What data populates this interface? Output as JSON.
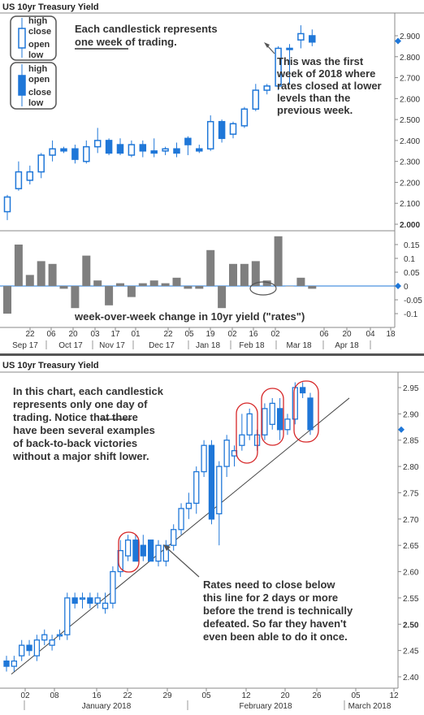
{
  "chart_data": [
    {
      "type": "candlestick",
      "title": "US 10yr Treasury Yield",
      "interval": "weekly",
      "ylim": [
        2.0,
        2.96
      ],
      "yticks": [
        "2.000",
        "2.100",
        "2.200",
        "2.300",
        "2.400",
        "2.500",
        "2.600",
        "2.700",
        "2.800",
        "2.900"
      ],
      "current_value": 2.875,
      "x_ticks": [
        "22",
        "06",
        "20",
        "03",
        "17",
        "01",
        "22",
        "05",
        "19",
        "02",
        "16",
        "02",
        "06",
        "20",
        "04",
        "18"
      ],
      "x_months": [
        "Sep 17",
        "Oct 17",
        "Nov 17",
        "Dec 17",
        "Jan 18",
        "Feb 18",
        "Mar 18",
        "Apr 18"
      ],
      "candles": [
        {
          "o": 2.06,
          "h": 2.14,
          "l": 2.02,
          "c": 2.13
        },
        {
          "o": 2.17,
          "h": 2.3,
          "l": 2.16,
          "c": 2.25
        },
        {
          "o": 2.21,
          "h": 2.28,
          "l": 2.19,
          "c": 2.25
        },
        {
          "o": 2.25,
          "h": 2.34,
          "l": 2.22,
          "c": 2.33
        },
        {
          "o": 2.33,
          "h": 2.4,
          "l": 2.3,
          "c": 2.36
        },
        {
          "o": 2.36,
          "h": 2.37,
          "l": 2.34,
          "c": 2.35
        },
        {
          "o": 2.36,
          "h": 2.38,
          "l": 2.29,
          "c": 2.31
        },
        {
          "o": 2.3,
          "h": 2.4,
          "l": 2.29,
          "c": 2.37
        },
        {
          "o": 2.37,
          "h": 2.46,
          "l": 2.34,
          "c": 2.4
        },
        {
          "o": 2.4,
          "h": 2.41,
          "l": 2.33,
          "c": 2.34
        },
        {
          "o": 2.38,
          "h": 2.41,
          "l": 2.33,
          "c": 2.34
        },
        {
          "o": 2.33,
          "h": 2.4,
          "l": 2.32,
          "c": 2.38
        },
        {
          "o": 2.38,
          "h": 2.4,
          "l": 2.32,
          "c": 2.35
        },
        {
          "o": 2.35,
          "h": 2.41,
          "l": 2.32,
          "c": 2.34
        },
        {
          "o": 2.35,
          "h": 2.37,
          "l": 2.33,
          "c": 2.36
        },
        {
          "o": 2.36,
          "h": 2.39,
          "l": 2.32,
          "c": 2.34
        },
        {
          "o": 2.41,
          "h": 2.42,
          "l": 2.33,
          "c": 2.38
        },
        {
          "o": 2.36,
          "h": 2.38,
          "l": 2.34,
          "c": 2.35
        },
        {
          "o": 2.36,
          "h": 2.52,
          "l": 2.35,
          "c": 2.49
        },
        {
          "o": 2.49,
          "h": 2.5,
          "l": 2.39,
          "c": 2.41
        },
        {
          "o": 2.43,
          "h": 2.49,
          "l": 2.41,
          "c": 2.48
        },
        {
          "o": 2.47,
          "h": 2.56,
          "l": 2.46,
          "c": 2.55
        },
        {
          "o": 2.55,
          "h": 2.67,
          "l": 2.54,
          "c": 2.64
        },
        {
          "o": 2.64,
          "h": 2.67,
          "l": 2.62,
          "c": 2.66
        },
        {
          "o": 2.66,
          "h": 2.85,
          "l": 2.64,
          "c": 2.84
        },
        {
          "o": 2.84,
          "h": 2.86,
          "l": 2.67,
          "c": 2.84
        },
        {
          "o": 2.88,
          "h": 2.95,
          "l": 2.84,
          "c": 2.91
        },
        {
          "o": 2.9,
          "h": 2.93,
          "l": 2.85,
          "c": 2.87
        }
      ],
      "annotations": {
        "legend_up_labels": [
          "high",
          "close",
          "open",
          "low"
        ],
        "legend_down_labels": [
          "high",
          "open",
          "close",
          "low"
        ],
        "note_top_line1": "Each candlestick represents",
        "note_top_line2": "one week of trading.",
        "note_side": [
          "This was the first",
          "week of 2018 where",
          "rates closed at lower",
          "levels than the",
          "previous week."
        ]
      }
    },
    {
      "type": "bar",
      "title": "",
      "series_name": "week-over-week change in 10yr yield (\"rates\")",
      "ylim": [
        -0.11,
        0.18
      ],
      "yticks": [
        "0.15",
        "0.1",
        "0.05",
        "0",
        "-0.05",
        "-0.1"
      ],
      "current_value": 0,
      "values": [
        -0.1,
        0.15,
        0.04,
        0.09,
        0.08,
        -0.01,
        -0.08,
        0.11,
        0.02,
        -0.07,
        0.01,
        -0.04,
        0.01,
        0.02,
        0.01,
        0.03,
        -0.01,
        -0.01,
        0.13,
        -0.08,
        0.08,
        0.08,
        0.09,
        0.02,
        0.18,
        0.0,
        0.03,
        -0.01
      ]
    },
    {
      "type": "candlestick",
      "title": "US 10yr Treasury Yield",
      "interval": "daily",
      "ylim": [
        2.39,
        2.965
      ],
      "yticks": [
        "2.40",
        "2.45",
        "2.50",
        "2.55",
        "2.60",
        "2.65",
        "2.70",
        "2.75",
        "2.80",
        "2.85",
        "2.90",
        "2.95"
      ],
      "current_value": 2.87,
      "x_ticks": [
        "02",
        "08",
        "16",
        "22",
        "29",
        "05",
        "12",
        "20",
        "26",
        "05",
        "12"
      ],
      "x_months": [
        "January 2018",
        "February 2018",
        "March 2018"
      ],
      "trendline": {
        "start": 2.405,
        "end": 2.93
      },
      "annotations": {
        "note_top": [
          "In this chart, each candlestick",
          "represents only one day of",
          "trading.  Notice that there",
          "have been several examples",
          "of back-to-back victories",
          "without a major shift lower."
        ],
        "note_bottom": [
          "Rates need to close below",
          "this line for 2 days or more",
          "before the trend is technically",
          "defeated.  So far they haven't",
          "even been able to do it once."
        ]
      },
      "candles": [
        {
          "o": 2.43,
          "h": 2.44,
          "l": 2.41,
          "c": 2.42
        },
        {
          "o": 2.42,
          "h": 2.44,
          "l": 2.41,
          "c": 2.43
        },
        {
          "o": 2.44,
          "h": 2.47,
          "l": 2.43,
          "c": 2.46
        },
        {
          "o": 2.46,
          "h": 2.47,
          "l": 2.44,
          "c": 2.45
        },
        {
          "o": 2.44,
          "h": 2.48,
          "l": 2.43,
          "c": 2.47
        },
        {
          "o": 2.47,
          "h": 2.49,
          "l": 2.46,
          "c": 2.48
        },
        {
          "o": 2.46,
          "h": 2.48,
          "l": 2.45,
          "c": 2.47
        },
        {
          "o": 2.48,
          "h": 2.49,
          "l": 2.47,
          "c": 2.48
        },
        {
          "o": 2.48,
          "h": 2.56,
          "l": 2.47,
          "c": 2.55
        },
        {
          "o": 2.55,
          "h": 2.56,
          "l": 2.53,
          "c": 2.54
        },
        {
          "o": 2.55,
          "h": 2.56,
          "l": 2.53,
          "c": 2.55
        },
        {
          "o": 2.55,
          "h": 2.56,
          "l": 2.53,
          "c": 2.54
        },
        {
          "o": 2.54,
          "h": 2.56,
          "l": 2.53,
          "c": 2.55
        },
        {
          "o": 2.53,
          "h": 2.56,
          "l": 2.52,
          "c": 2.54
        },
        {
          "o": 2.54,
          "h": 2.61,
          "l": 2.53,
          "c": 2.6
        },
        {
          "o": 2.6,
          "h": 2.66,
          "l": 2.59,
          "c": 2.64
        },
        {
          "o": 2.63,
          "h": 2.67,
          "l": 2.62,
          "c": 2.66
        },
        {
          "o": 2.66,
          "h": 2.67,
          "l": 2.62,
          "c": 2.62
        },
        {
          "o": 2.65,
          "h": 2.67,
          "l": 2.62,
          "c": 2.63
        },
        {
          "o": 2.66,
          "h": 2.66,
          "l": 2.62,
          "c": 2.62
        },
        {
          "o": 2.62,
          "h": 2.66,
          "l": 2.61,
          "c": 2.65
        },
        {
          "o": 2.62,
          "h": 2.66,
          "l": 2.61,
          "c": 2.65
        },
        {
          "o": 2.65,
          "h": 2.69,
          "l": 2.64,
          "c": 2.68
        },
        {
          "o": 2.68,
          "h": 2.73,
          "l": 2.67,
          "c": 2.72
        },
        {
          "o": 2.72,
          "h": 2.75,
          "l": 2.7,
          "c": 2.73
        },
        {
          "o": 2.73,
          "h": 2.8,
          "l": 2.71,
          "c": 2.79
        },
        {
          "o": 2.79,
          "h": 2.85,
          "l": 2.78,
          "c": 2.84
        },
        {
          "o": 2.84,
          "h": 2.85,
          "l": 2.69,
          "c": 2.7
        },
        {
          "o": 2.71,
          "h": 2.81,
          "l": 2.65,
          "c": 2.8
        },
        {
          "o": 2.8,
          "h": 2.86,
          "l": 2.78,
          "c": 2.85
        },
        {
          "o": 2.82,
          "h": 2.84,
          "l": 2.8,
          "c": 2.83
        },
        {
          "o": 2.84,
          "h": 2.9,
          "l": 2.83,
          "c": 2.86
        },
        {
          "o": 2.86,
          "h": 2.91,
          "l": 2.85,
          "c": 2.9
        },
        {
          "o": 2.84,
          "h": 2.87,
          "l": 2.83,
          "c": 2.86
        },
        {
          "o": 2.86,
          "h": 2.92,
          "l": 2.85,
          "c": 2.91
        },
        {
          "o": 2.88,
          "h": 2.93,
          "l": 2.87,
          "c": 2.92
        },
        {
          "o": 2.91,
          "h": 2.93,
          "l": 2.85,
          "c": 2.87
        },
        {
          "o": 2.87,
          "h": 2.9,
          "l": 2.86,
          "c": 2.89
        },
        {
          "o": 2.89,
          "h": 2.96,
          "l": 2.88,
          "c": 2.95
        },
        {
          "o": 2.95,
          "h": 2.96,
          "l": 2.93,
          "c": 2.94
        },
        {
          "o": 2.93,
          "h": 2.94,
          "l": 2.86,
          "c": 2.87
        }
      ]
    }
  ]
}
